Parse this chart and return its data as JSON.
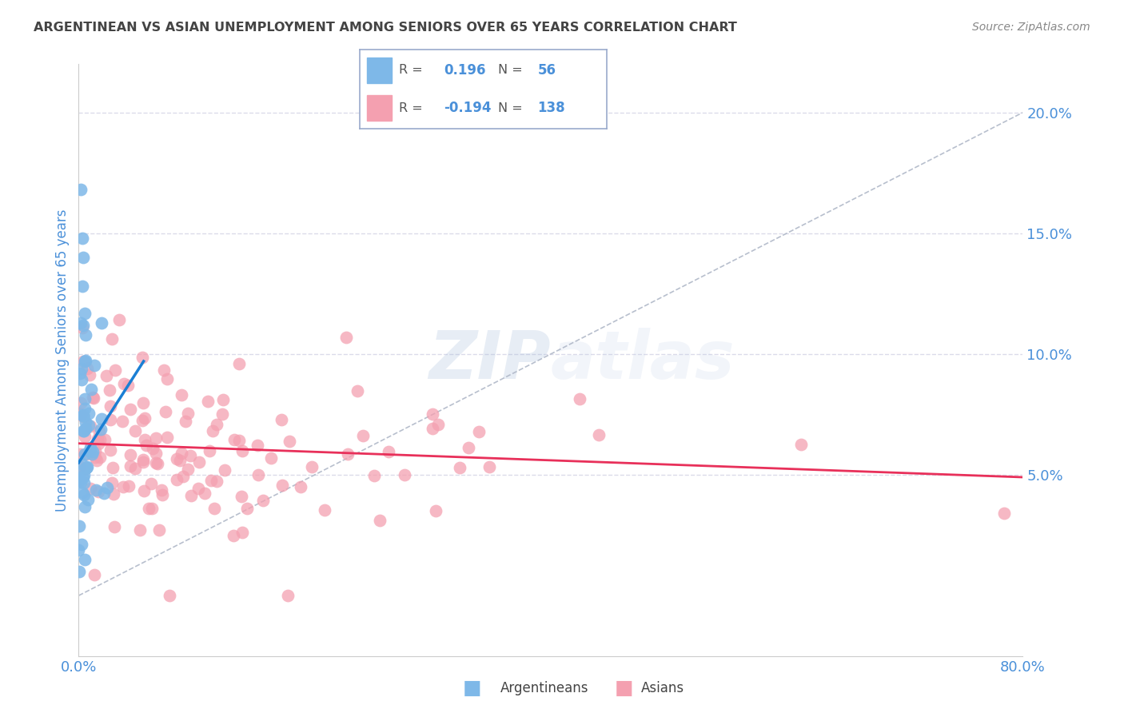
{
  "title": "ARGENTINEAN VS ASIAN UNEMPLOYMENT AMONG SENIORS OVER 65 YEARS CORRELATION CHART",
  "source": "Source: ZipAtlas.com",
  "ylabel": "Unemployment Among Seniors over 65 years",
  "xlim": [
    0.0,
    0.8
  ],
  "ylim": [
    -0.025,
    0.22
  ],
  "yticks": [
    0.05,
    0.1,
    0.15,
    0.2
  ],
  "ytick_labels": [
    "5.0%",
    "10.0%",
    "15.0%",
    "20.0%"
  ],
  "xtick_left": "0.0%",
  "xtick_right": "80.0%",
  "argentinean_color": "#7eb8e8",
  "asian_color": "#f4a0b0",
  "trend_arg_color": "#1a7fd4",
  "trend_asian_color": "#e8305a",
  "diag_color": "#b0b8c8",
  "R_arg": 0.196,
  "N_arg": 56,
  "R_asian": -0.194,
  "N_asian": 138,
  "legend_text_color": "#4a90d9",
  "axis_label_color": "#4a90d9",
  "title_color": "#444444",
  "background_color": "#ffffff",
  "grid_color": "#d8d8e8",
  "arg_trend_x": [
    0.0,
    0.055
  ],
  "arg_trend_y": [
    0.055,
    0.097
  ],
  "asian_trend_x": [
    0.0,
    0.8
  ],
  "asian_trend_y": [
    0.063,
    0.049
  ]
}
